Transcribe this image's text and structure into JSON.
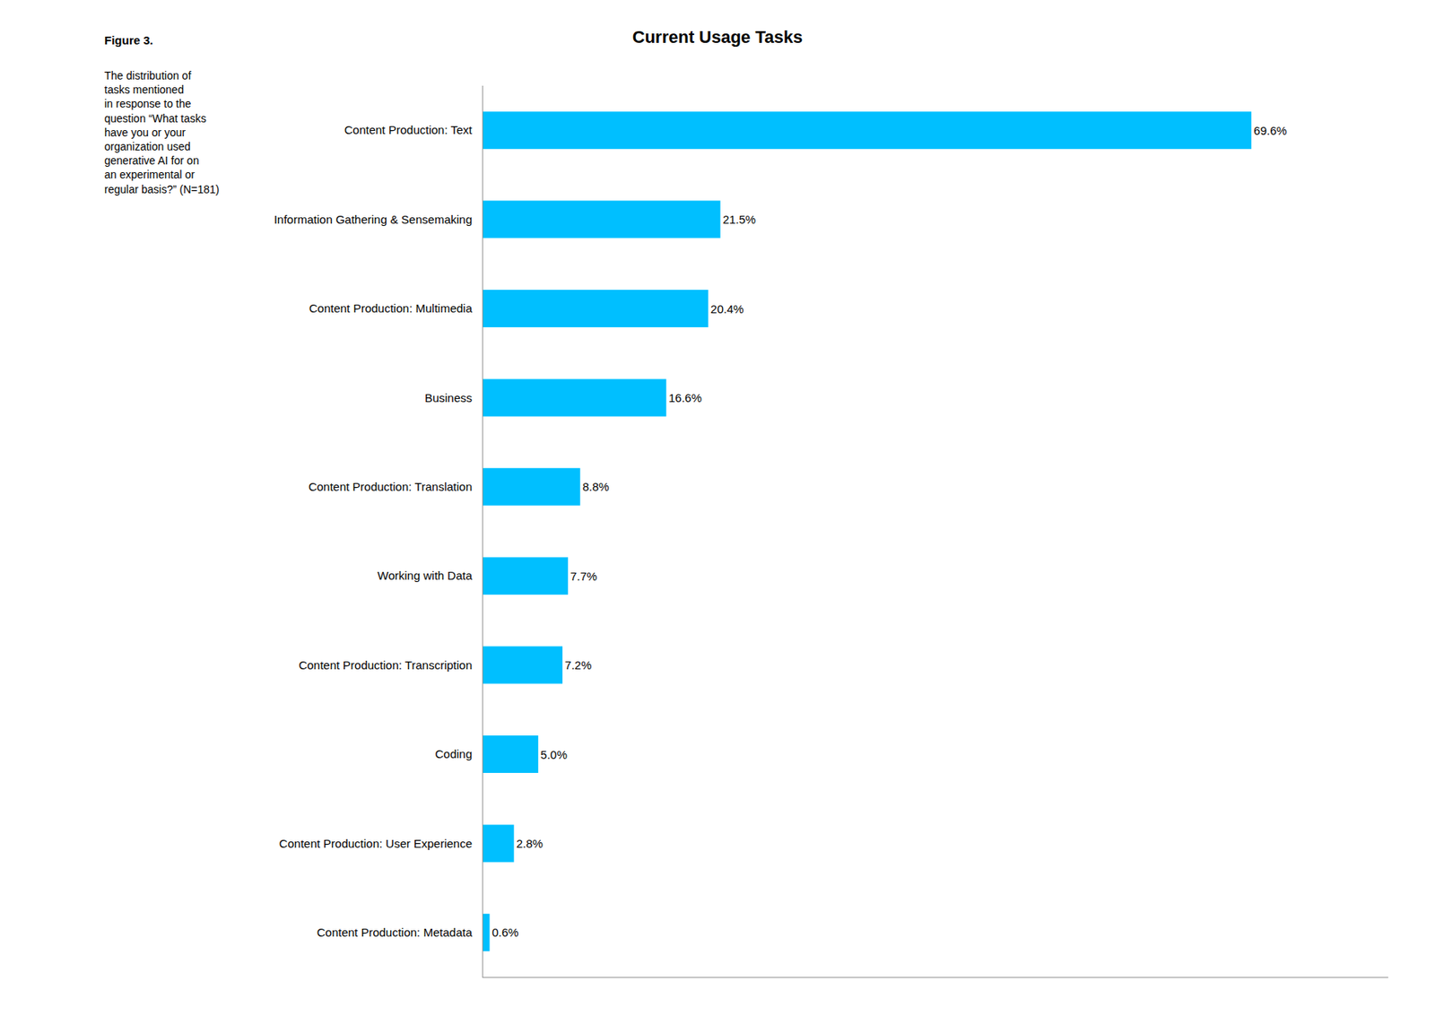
{
  "chart_data": {
    "type": "bar",
    "orientation": "horizontal",
    "title": "Current Usage Tasks",
    "annotations": [
      "Figure 3.",
      "The distribution of\ntasks mentioned\nin response to the\nquestion “What tasks\nhave you or your\norganization used\ngenerative AI for on\nan experimental or\nregular basis?” (N=181)"
    ],
    "categories": [
      "Content Production: Text",
      "Information Gathering & Sensemaking",
      "Content Production: Multimedia",
      "Business",
      "Content Production: Translation",
      "Working with Data",
      "Content Production: Transcription",
      "Coding",
      "Content Production: User Experience",
      "Content Production: Metadata"
    ],
    "values": [
      69.6,
      21.5,
      20.4,
      16.6,
      8.8,
      7.7,
      7.2,
      5.0,
      2.8,
      0.6
    ],
    "value_labels": [
      "69.6%",
      "21.5%",
      "20.4%",
      "16.6%",
      "8.8%",
      "7.7%",
      "7.2%",
      "5.0%",
      "2.8%",
      "0.6%"
    ],
    "data_labels": true,
    "color": "#00BFFF",
    "xlim": [
      0,
      82
    ],
    "xticks": [],
    "tick_labels": "y",
    "grid": false
  }
}
